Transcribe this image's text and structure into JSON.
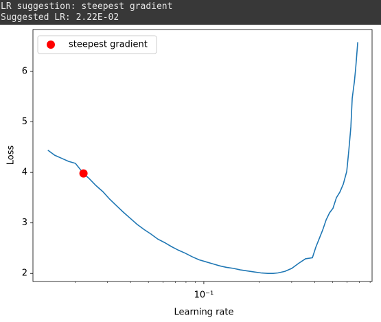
{
  "output_text": [
    "LR suggestion: steepest gradient",
    "Suggested LR: 2.22E-02"
  ],
  "chart_data": {
    "type": "line",
    "xlabel": "Learning rate",
    "ylabel": "Loss",
    "xscale": "log",
    "xlim": [
      0.0118,
      0.82
    ],
    "ylim": [
      1.84,
      6.83
    ],
    "xticks": [
      {
        "value": 0.1,
        "label": "10⁻¹"
      }
    ],
    "xminorticks": [
      0.02,
      0.03,
      0.04,
      0.05,
      0.06,
      0.07,
      0.08,
      0.09,
      0.2,
      0.3,
      0.4,
      0.5,
      0.6,
      0.7,
      0.8
    ],
    "yticks": [
      2,
      3,
      4,
      5,
      6
    ],
    "color": "#1f77b4",
    "x": [
      0.01422,
      0.0155,
      0.01689,
      0.0184,
      0.02006,
      0.0222,
      0.02381,
      0.02595,
      0.02828,
      0.03082,
      0.03358,
      0.0366,
      0.03989,
      0.04345,
      0.04735,
      0.0516,
      0.05623,
      0.06128,
      0.06678,
      0.07277,
      0.07931,
      0.08642,
      0.09417,
      0.1026,
      0.1118,
      0.1218,
      0.1328,
      0.1447,
      0.1577,
      0.1718,
      0.1873,
      0.2041,
      0.2223,
      0.2382,
      0.2529,
      0.2756,
      0.3004,
      0.3274,
      0.3567,
      0.3888,
      0.4058,
      0.4237,
      0.4422,
      0.4616,
      0.4817,
      0.5029,
      0.5249,
      0.548,
      0.5722,
      0.5973,
      0.6129,
      0.6289,
      0.6397,
      0.6568,
      0.668,
      0.6855
    ],
    "values": [
      4.44,
      4.34,
      4.28,
      4.22,
      4.18,
      3.98,
      3.88,
      3.74,
      3.62,
      3.47,
      3.34,
      3.21,
      3.09,
      2.97,
      2.87,
      2.78,
      2.68,
      2.61,
      2.53,
      2.46,
      2.4,
      2.33,
      2.27,
      2.23,
      2.19,
      2.15,
      2.12,
      2.1,
      2.07,
      2.05,
      2.03,
      2.01,
      2.0,
      2.0,
      2.01,
      2.04,
      2.1,
      2.2,
      2.29,
      2.31,
      2.52,
      2.69,
      2.86,
      3.06,
      3.2,
      3.29,
      3.5,
      3.61,
      3.77,
      4.02,
      4.43,
      4.9,
      5.47,
      5.79,
      6.06,
      6.58
    ],
    "marker": {
      "name": "steepest gradient",
      "x": 0.0222,
      "y": 3.98,
      "color": "#ff0000"
    },
    "legend": "upper left"
  }
}
